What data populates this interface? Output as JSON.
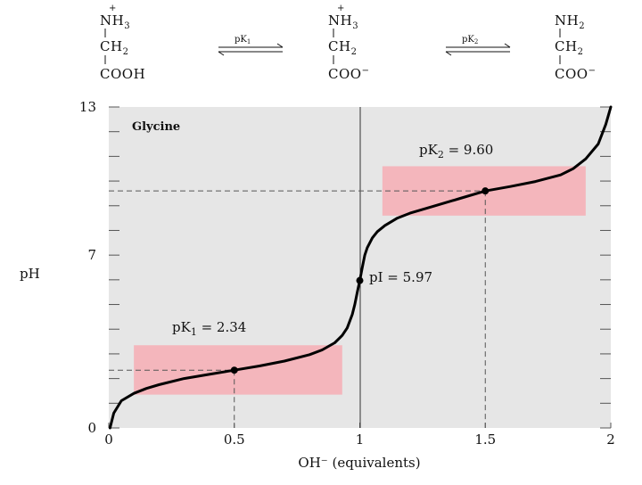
{
  "reaction": {
    "species": [
      {
        "top_prefix": "N",
        "top_group": "H",
        "top_sub": "3",
        "charge": "+",
        "middle": "CH",
        "middle_sub": "2",
        "bottom": "COOH",
        "bottom_charge": ""
      },
      {
        "top_prefix": "N",
        "top_group": "H",
        "top_sub": "3",
        "charge": "+",
        "middle": "CH",
        "middle_sub": "2",
        "bottom": "COO",
        "bottom_charge": "−"
      },
      {
        "top_prefix": "N",
        "top_group": "H",
        "top_sub": "2",
        "charge": "",
        "middle": "CH",
        "middle_sub": "2",
        "bottom": "COO",
        "bottom_charge": "−"
      }
    ],
    "arrows": [
      {
        "label": "pK",
        "sub": "1"
      },
      {
        "label": "pK",
        "sub": "2"
      }
    ]
  },
  "colors": {
    "plot_bg": "#e6e6e6",
    "buffer_region": "#f4b6bc",
    "curve": "#000000",
    "dashed": "#555555"
  },
  "chart_data": {
    "type": "line",
    "title": "Glycine",
    "xlabel": "OH⁻ (equivalents)",
    "ylabel": "pH",
    "xlim": [
      0,
      2
    ],
    "ylim": [
      0,
      13
    ],
    "x_ticks": [
      "0",
      "0.5",
      "1",
      "1.5",
      "2"
    ],
    "y_ticks": [
      "0",
      "7",
      "13"
    ],
    "grid": false,
    "series": [
      {
        "x": [
          0.005,
          0.02,
          0.05,
          0.1,
          0.15,
          0.2,
          0.3,
          0.4,
          0.5,
          0.6,
          0.7,
          0.8,
          0.85,
          0.9,
          0.93,
          0.95,
          0.97,
          0.98,
          0.99,
          1.0,
          1.01,
          1.02,
          1.03,
          1.05,
          1.07,
          1.1,
          1.15,
          1.2,
          1.3,
          1.4,
          1.5,
          1.6,
          1.7,
          1.8,
          1.85,
          1.9,
          1.95,
          1.98,
          2.0
        ],
        "y": [
          0.0,
          0.6,
          1.1,
          1.4,
          1.6,
          1.75,
          2.0,
          2.17,
          2.34,
          2.51,
          2.71,
          2.97,
          3.16,
          3.45,
          3.75,
          4.05,
          4.6,
          5.0,
          5.5,
          5.97,
          6.5,
          7.0,
          7.3,
          7.7,
          7.95,
          8.2,
          8.5,
          8.7,
          9.0,
          9.3,
          9.6,
          9.78,
          9.98,
          10.25,
          10.5,
          10.9,
          11.5,
          12.3,
          13.0
        ]
      }
    ],
    "points": [
      {
        "x": 0.5,
        "y": 2.34
      },
      {
        "x": 1.0,
        "y": 5.97
      },
      {
        "x": 1.5,
        "y": 9.6
      }
    ],
    "buffer_regions": [
      {
        "x": [
          0.1,
          0.93
        ],
        "y": [
          1.35,
          3.35
        ]
      },
      {
        "x": [
          1.09,
          1.9
        ],
        "y": [
          8.6,
          10.6
        ]
      }
    ],
    "vertical_line_x": 1.0,
    "annotations": {
      "pk1_label": "pK",
      "pk1_sub": "1",
      "pk1_value": " = 2.34",
      "pk2_label": "pK",
      "pk2_sub": "2",
      "pk2_value": " = 9.60",
      "pi_label": "pI = 5.97"
    }
  }
}
